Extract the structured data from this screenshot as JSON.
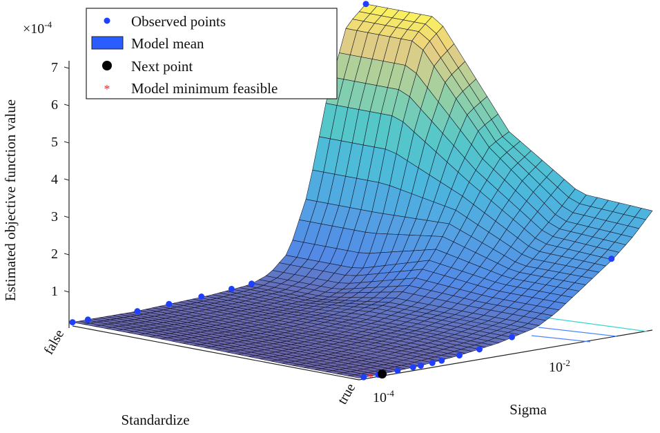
{
  "chart_data": {
    "type": "surface",
    "zlabel": "Estimated objective function value",
    "z_multiplier": "×10",
    "z_multiplier_exp": "-4",
    "z_ticks": [
      "1",
      "2",
      "3",
      "4",
      "5",
      "6",
      "7"
    ],
    "xlabel": "Standardize",
    "x_categories": [
      "false",
      "true"
    ],
    "ylabel": "Sigma",
    "y_scale": "log",
    "y_ticks": [
      {
        "base": "10",
        "exp": "-4",
        "log10": -4
      },
      {
        "base": "10",
        "exp": "-2",
        "log10": -2
      }
    ],
    "y_log10_range": [
      -4.3,
      -0.5
    ],
    "legend": {
      "position": "top-left",
      "entries": [
        {
          "label": "Observed points",
          "marker": "dot",
          "color": "#1f3fff"
        },
        {
          "label": "Model mean",
          "marker": "patch",
          "color": "#2b5cff"
        },
        {
          "label": "Next point",
          "marker": "dot",
          "color": "#000000"
        },
        {
          "label": "Model minimum feasible",
          "marker": "star",
          "color": "#ff2020"
        }
      ]
    },
    "surface": {
      "sigma_log10": [
        -4.3,
        -4,
        -3.5,
        -3,
        -2.5,
        -2,
        -1.75,
        -1.5,
        -1.25,
        -1,
        -0.75,
        -0.5
      ],
      "standardize_fraction": [
        0,
        0.25,
        0.5,
        0.75,
        1
      ],
      "z_e4": [
        [
          0.1,
          0.1,
          0.1,
          0.15,
          0.2,
          0.3,
          0.5,
          1.0,
          2.5,
          5.0,
          6.8,
          7.3
        ],
        [
          0.1,
          0.1,
          0.1,
          0.15,
          0.2,
          0.3,
          0.5,
          1.0,
          2.5,
          5.0,
          6.8,
          7.3
        ],
        [
          0.08,
          0.08,
          0.1,
          0.15,
          0.3,
          0.6,
          1.0,
          1.6,
          2.5,
          3.5,
          4.3,
          4.6
        ],
        [
          0.05,
          0.05,
          0.1,
          0.2,
          0.35,
          0.6,
          0.9,
          1.3,
          1.7,
          2.2,
          2.7,
          3.3
        ],
        [
          0.05,
          0.05,
          0.1,
          0.2,
          0.35,
          0.6,
          0.9,
          1.3,
          1.7,
          2.1,
          2.6,
          3.2
        ]
      ]
    },
    "observed_points": [
      {
        "standardize": "false",
        "sigma_log10": -4.3,
        "z_e4": 0.1
      },
      {
        "standardize": "false",
        "sigma_log10": -4.1,
        "z_e4": 0.1
      },
      {
        "standardize": "false",
        "sigma_log10": -3.46,
        "z_e4": 0.1
      },
      {
        "standardize": "false",
        "sigma_log10": -3.05,
        "z_e4": 0.15
      },
      {
        "standardize": "false",
        "sigma_log10": -2.63,
        "z_e4": 0.2
      },
      {
        "standardize": "false",
        "sigma_log10": -2.24,
        "z_e4": 0.27
      },
      {
        "standardize": "false",
        "sigma_log10": -1.98,
        "z_e4": 0.32
      },
      {
        "standardize": "false",
        "sigma_log10": -0.5,
        "z_e4": 7.3
      },
      {
        "standardize": "true",
        "sigma_log10": -4.24,
        "z_e4": 0.05
      },
      {
        "standardize": "true",
        "sigma_log10": -4.05,
        "z_e4": 0.05
      },
      {
        "standardize": "true",
        "sigma_log10": -3.8,
        "z_e4": 0.07
      },
      {
        "standardize": "true",
        "sigma_log10": -3.6,
        "z_e4": 0.09
      },
      {
        "standardize": "true",
        "sigma_log10": -3.5,
        "z_e4": 0.1
      },
      {
        "standardize": "true",
        "sigma_log10": -3.35,
        "z_e4": 0.12
      },
      {
        "standardize": "true",
        "sigma_log10": -3.23,
        "z_e4": 0.14
      },
      {
        "standardize": "true",
        "sigma_log10": -3.0,
        "z_e4": 0.2
      },
      {
        "standardize": "true",
        "sigma_log10": -2.74,
        "z_e4": 0.27
      },
      {
        "standardize": "true",
        "sigma_log10": -2.32,
        "z_e4": 0.45
      },
      {
        "standardize": "true",
        "sigma_log10": -1.03,
        "z_e4": 2.1
      }
    ],
    "next_point": {
      "standardize": "true",
      "sigma_log10": -4.0,
      "z_e4": 0.05
    },
    "model_minimum_feasible": {
      "standardize": "true",
      "sigma_log10": -4.15,
      "z_e4": 0.05
    }
  }
}
